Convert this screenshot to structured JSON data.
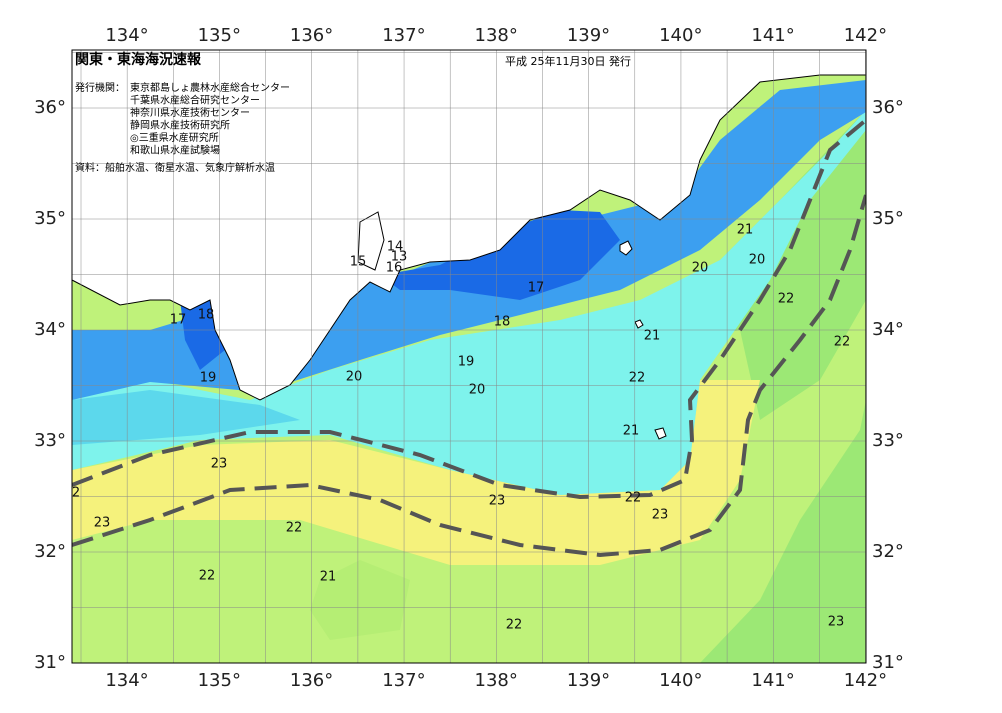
{
  "header": {
    "title": "関東・東海海況速報",
    "date": "平成 25年11月30日 発行",
    "issuer_label": "発行機関：",
    "issuers": [
      "東京都島しょ農林水産総合センター",
      "千葉県水産総合研究センター",
      "神奈川県水産技術センター",
      "静岡県水産技術研究所",
      "◎三重県水産研究所",
      "和歌山県水産試験場"
    ],
    "source": "資料：船舶水温、衛星水温、気象庁解析水温"
  },
  "map": {
    "lon_labels": [
      "134°",
      "135°",
      "136°",
      "137°",
      "138°",
      "139°",
      "140°",
      "141°",
      "142°"
    ],
    "lat_labels": [
      "36°",
      "35°",
      "34°",
      "33°",
      "32°",
      "31°"
    ],
    "contour_labels": [
      "15",
      "14",
      "13",
      "16",
      "17",
      "17",
      "18",
      "18",
      "19",
      "19",
      "20",
      "20",
      "20",
      "21",
      "20",
      "22",
      "21",
      "22",
      "22",
      "21",
      "23",
      "23",
      "22",
      "23",
      "23",
      "22",
      "22",
      "21",
      "22",
      "23",
      "2"
    ]
  }
}
